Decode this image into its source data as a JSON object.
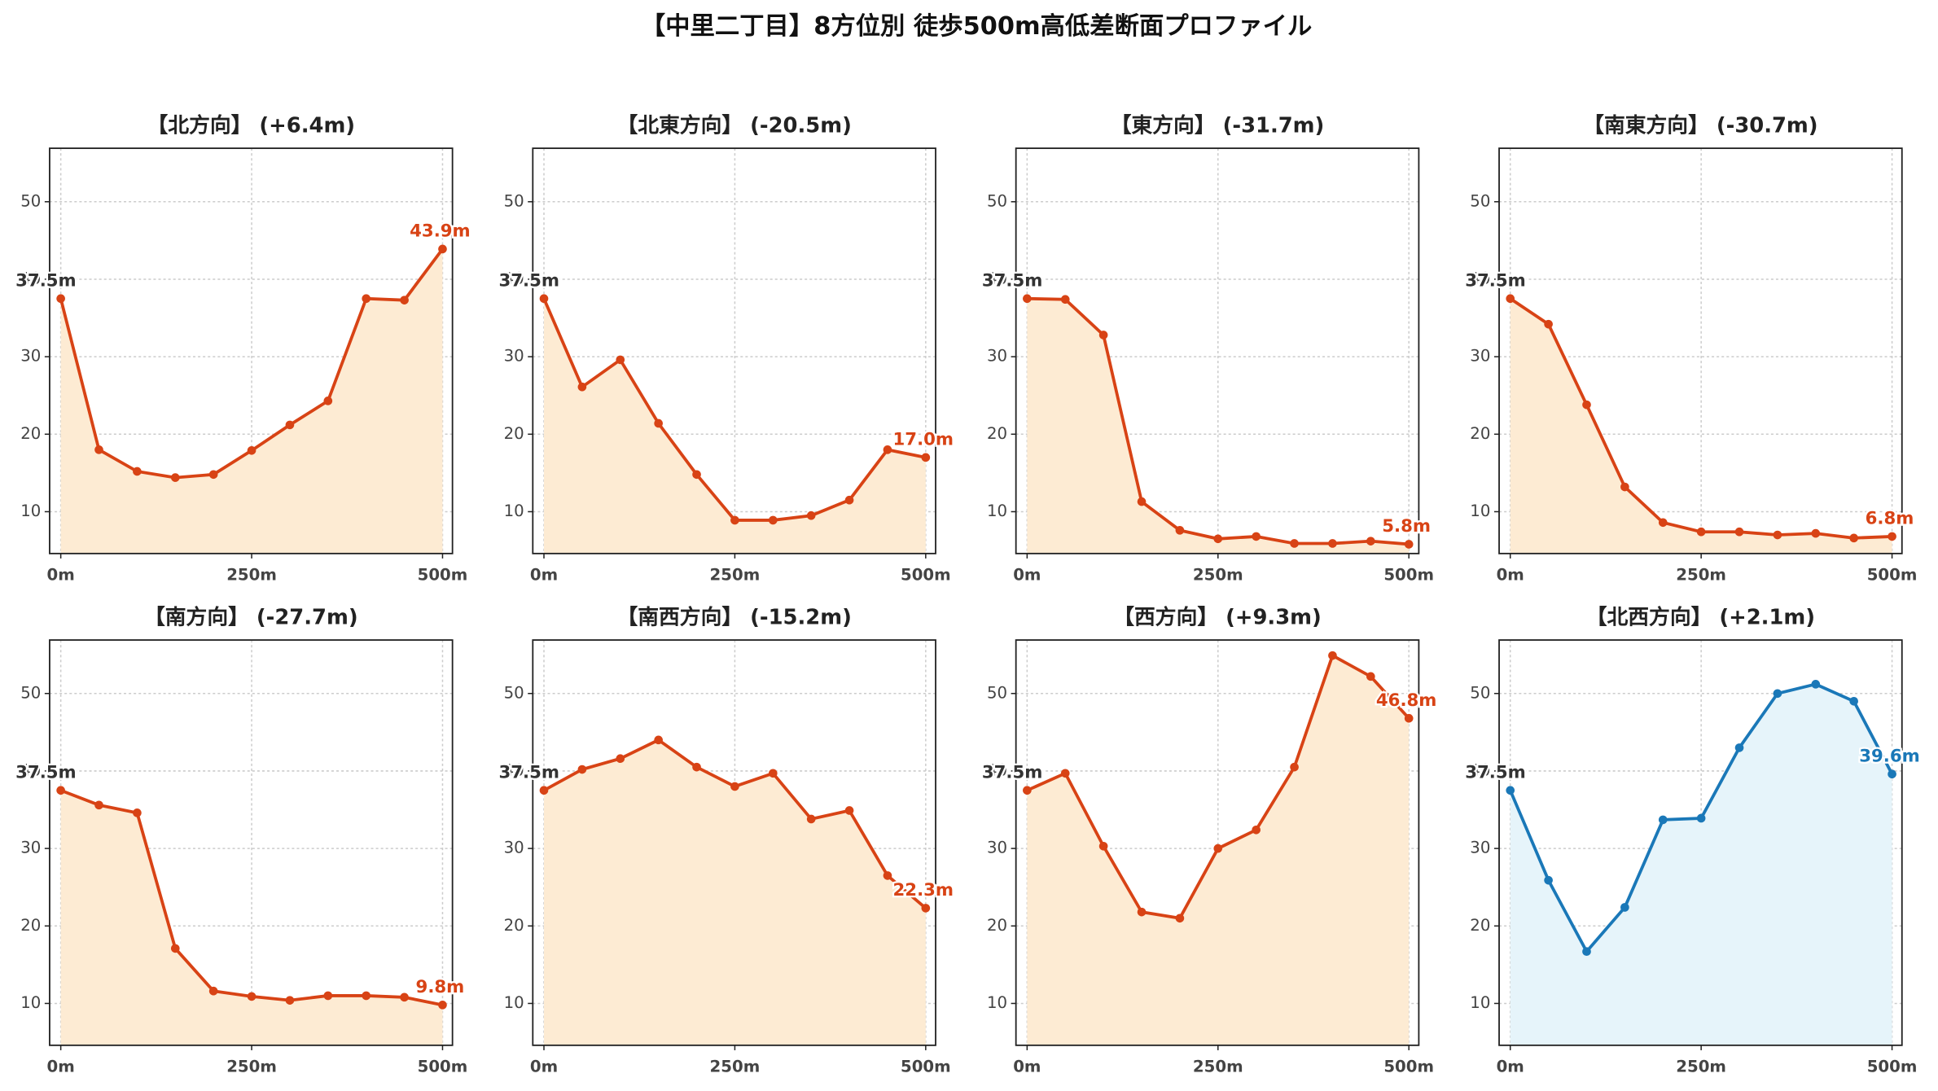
{
  "title": "【中里二丁目】8方位別 徒歩500m高低差断面プロファイル",
  "chart_data": [
    {
      "type": "line",
      "title": "【北方向】 (+6.4m)",
      "x": [
        0,
        50,
        100,
        150,
        200,
        250,
        300,
        350,
        400,
        450,
        500
      ],
      "values": [
        37.5,
        18.0,
        15.2,
        14.4,
        14.8,
        17.9,
        21.2,
        24.3,
        37.5,
        37.3,
        43.9
      ],
      "value_labels": [
        "37.5m",
        null,
        null,
        null,
        null,
        null,
        null,
        null,
        null,
        null,
        "43.9m"
      ],
      "color": "#d84315",
      "fill_color": "#fdebd3",
      "xlim": [
        -14.6,
        513
      ],
      "ylim": [
        4.6,
        56.9
      ],
      "xticks": [
        {
          "value": 0,
          "label": "0m"
        },
        {
          "value": 250,
          "label": "250m"
        },
        {
          "value": 500,
          "label": "500m"
        }
      ],
      "yticks": [
        10,
        20,
        30,
        40,
        50
      ],
      "grid": true
    },
    {
      "type": "line",
      "title": "【北東方向】 (-20.5m)",
      "x": [
        0,
        50,
        100,
        150,
        200,
        250,
        300,
        350,
        400,
        450,
        500
      ],
      "values": [
        37.5,
        26.1,
        29.6,
        21.4,
        14.8,
        8.9,
        8.9,
        9.5,
        11.5,
        18.0,
        17.0
      ],
      "value_labels": [
        "37.5m",
        null,
        null,
        null,
        null,
        null,
        null,
        null,
        null,
        null,
        "17.0m"
      ],
      "color": "#d84315",
      "fill_color": "#fdebd3",
      "xlim": [
        -14.6,
        513
      ],
      "ylim": [
        4.6,
        56.9
      ],
      "xticks": [
        {
          "value": 0,
          "label": "0m"
        },
        {
          "value": 250,
          "label": "250m"
        },
        {
          "value": 500,
          "label": "500m"
        }
      ],
      "yticks": [
        10,
        20,
        30,
        40,
        50
      ],
      "grid": true
    },
    {
      "type": "line",
      "title": "【東方向】 (-31.7m)",
      "x": [
        0,
        50,
        100,
        150,
        200,
        250,
        300,
        350,
        400,
        450,
        500
      ],
      "values": [
        37.5,
        37.4,
        32.8,
        11.3,
        7.6,
        6.5,
        6.8,
        5.9,
        5.9,
        6.2,
        5.8
      ],
      "value_labels": [
        "37.5m",
        null,
        null,
        null,
        null,
        null,
        null,
        null,
        null,
        null,
        "5.8m"
      ],
      "color": "#d84315",
      "fill_color": "#fdebd3",
      "xlim": [
        -14.6,
        513
      ],
      "ylim": [
        4.6,
        56.9
      ],
      "xticks": [
        {
          "value": 0,
          "label": "0m"
        },
        {
          "value": 250,
          "label": "250m"
        },
        {
          "value": 500,
          "label": "500m"
        }
      ],
      "yticks": [
        10,
        20,
        30,
        40,
        50
      ],
      "grid": true
    },
    {
      "type": "line",
      "title": "【南東方向】 (-30.7m)",
      "x": [
        0,
        50,
        100,
        150,
        200,
        250,
        300,
        350,
        400,
        450,
        500
      ],
      "values": [
        37.5,
        34.2,
        23.8,
        13.2,
        8.6,
        7.4,
        7.4,
        7.0,
        7.2,
        6.6,
        6.8
      ],
      "value_labels": [
        "37.5m",
        null,
        null,
        null,
        null,
        null,
        null,
        null,
        null,
        null,
        "6.8m"
      ],
      "color": "#d84315",
      "fill_color": "#fdebd3",
      "xlim": [
        -14.6,
        513
      ],
      "ylim": [
        4.6,
        56.9
      ],
      "xticks": [
        {
          "value": 0,
          "label": "0m"
        },
        {
          "value": 250,
          "label": "250m"
        },
        {
          "value": 500,
          "label": "500m"
        }
      ],
      "yticks": [
        10,
        20,
        30,
        40,
        50
      ],
      "grid": true
    },
    {
      "type": "line",
      "title": "【南方向】 (-27.7m)",
      "x": [
        0,
        50,
        100,
        150,
        200,
        250,
        300,
        350,
        400,
        450,
        500
      ],
      "values": [
        37.5,
        35.6,
        34.6,
        17.1,
        11.6,
        10.9,
        10.4,
        11.0,
        11.0,
        10.8,
        9.8
      ],
      "value_labels": [
        "37.5m",
        null,
        null,
        null,
        null,
        null,
        null,
        null,
        null,
        null,
        "9.8m"
      ],
      "color": "#d84315",
      "fill_color": "#fdebd3",
      "xlim": [
        -14.6,
        513
      ],
      "ylim": [
        4.6,
        56.9
      ],
      "xticks": [
        {
          "value": 0,
          "label": "0m"
        },
        {
          "value": 250,
          "label": "250m"
        },
        {
          "value": 500,
          "label": "500m"
        }
      ],
      "yticks": [
        10,
        20,
        30,
        40,
        50
      ],
      "grid": true
    },
    {
      "type": "line",
      "title": "【南西方向】 (-15.2m)",
      "x": [
        0,
        50,
        100,
        150,
        200,
        250,
        300,
        350,
        400,
        450,
        500
      ],
      "values": [
        37.5,
        40.2,
        41.6,
        44.0,
        40.5,
        38.0,
        39.7,
        33.8,
        34.9,
        26.5,
        22.3
      ],
      "value_labels": [
        "37.5m",
        null,
        null,
        null,
        null,
        null,
        null,
        null,
        null,
        null,
        "22.3m"
      ],
      "color": "#d84315",
      "fill_color": "#fdebd3",
      "xlim": [
        -14.6,
        513
      ],
      "ylim": [
        4.6,
        56.9
      ],
      "xticks": [
        {
          "value": 0,
          "label": "0m"
        },
        {
          "value": 250,
          "label": "250m"
        },
        {
          "value": 500,
          "label": "500m"
        }
      ],
      "yticks": [
        10,
        20,
        30,
        40,
        50
      ],
      "grid": true
    },
    {
      "type": "line",
      "title": "【西方向】 (+9.3m)",
      "x": [
        0,
        50,
        100,
        150,
        200,
        250,
        300,
        350,
        400,
        450,
        500
      ],
      "values": [
        37.5,
        39.7,
        30.3,
        21.8,
        21.0,
        30.0,
        32.4,
        40.5,
        54.9,
        52.2,
        46.8
      ],
      "value_labels": [
        "37.5m",
        null,
        null,
        null,
        null,
        null,
        null,
        null,
        null,
        null,
        "46.8m"
      ],
      "color": "#d84315",
      "fill_color": "#fdebd3",
      "xlim": [
        -14.6,
        513
      ],
      "ylim": [
        4.6,
        56.9
      ],
      "xticks": [
        {
          "value": 0,
          "label": "0m"
        },
        {
          "value": 250,
          "label": "250m"
        },
        {
          "value": 500,
          "label": "500m"
        }
      ],
      "yticks": [
        10,
        20,
        30,
        40,
        50
      ],
      "grid": true
    },
    {
      "type": "line",
      "title": "【北西方向】 (+2.1m)",
      "x": [
        0,
        50,
        100,
        150,
        200,
        250,
        300,
        350,
        400,
        450,
        500
      ],
      "values": [
        37.5,
        25.9,
        16.7,
        22.4,
        33.7,
        33.9,
        43.0,
        50.0,
        51.2,
        49.0,
        39.6
      ],
      "value_labels": [
        "37.5m",
        null,
        null,
        null,
        null,
        null,
        null,
        null,
        null,
        null,
        "39.6m"
      ],
      "color": "#1a78b8",
      "fill_color": "#e6f4fa",
      "xlim": [
        -14.6,
        513
      ],
      "ylim": [
        4.6,
        56.9
      ],
      "xticks": [
        {
          "value": 0,
          "label": "0m"
        },
        {
          "value": 250,
          "label": "250m"
        },
        {
          "value": 500,
          "label": "500m"
        }
      ],
      "yticks": [
        10,
        20,
        30,
        40,
        50
      ],
      "grid": true
    }
  ]
}
